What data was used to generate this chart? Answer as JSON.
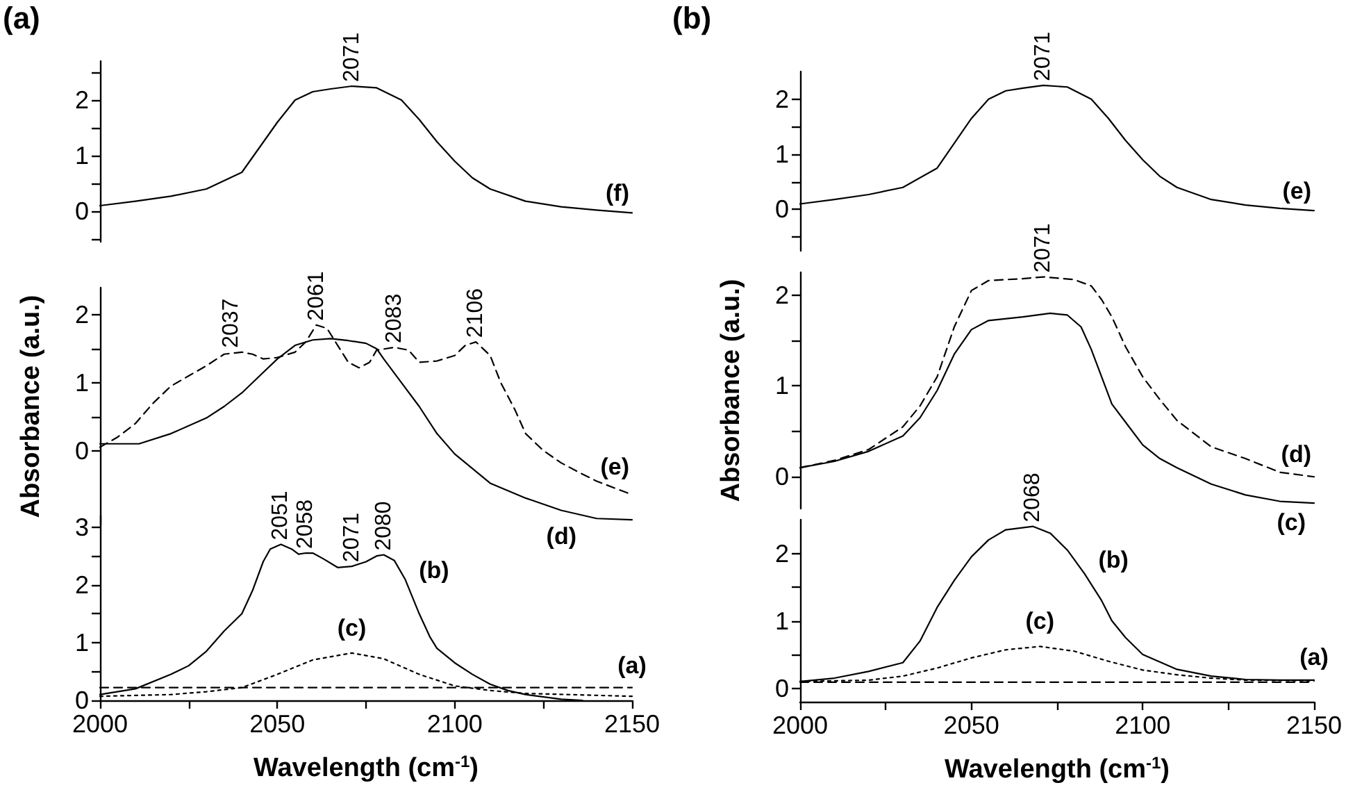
{
  "chart_data": [
    {
      "type": "line",
      "title": "(a)",
      "xlim": [
        2000,
        2150
      ],
      "tick_labels": "y",
      "ylim": [
        -0.55,
        2.7
      ],
      "yticks": [
        {
          "value": -0.5,
          "label": null
        },
        0,
        {
          "value": 0.5,
          "label": null
        },
        1,
        {
          "value": 1.5,
          "label": null
        },
        2,
        {
          "value": 2.5,
          "label": null
        }
      ],
      "annotations": [
        {
          "text": "2071",
          "x": 2071,
          "y": 2.25
        }
      ],
      "series": [
        {
          "name": "(f)",
          "color": "#000000",
          "line_style": "solid",
          "x": [
            2000,
            2010,
            2020,
            2030,
            2040,
            2045,
            2050,
            2055,
            2060,
            2065,
            2071,
            2078,
            2085,
            2090,
            2095,
            2100,
            2105,
            2110,
            2120,
            2130,
            2140,
            2150
          ],
          "values": [
            0.1,
            0.18,
            0.27,
            0.4,
            0.7,
            1.15,
            1.6,
            2.0,
            2.15,
            2.2,
            2.25,
            2.22,
            2.0,
            1.65,
            1.25,
            0.9,
            0.6,
            0.4,
            0.18,
            0.08,
            0.02,
            -0.03
          ]
        }
      ]
    },
    {
      "type": "line",
      "title": "(b)",
      "xlim": [
        2000,
        2150
      ],
      "tick_labels": "y",
      "ylim": [
        -0.75,
        2.5
      ],
      "yticks": [
        {
          "value": -0.5,
          "label": null
        },
        0,
        {
          "value": 0.5,
          "label": null
        },
        1,
        {
          "value": 1.5,
          "label": null
        },
        2
      ],
      "annotations": [
        {
          "text": "2071",
          "x": 2071,
          "y": 2.25
        }
      ],
      "series": [
        {
          "name": "(e)",
          "color": "#000000",
          "line_style": "solid",
          "x": [
            2000,
            2010,
            2020,
            2030,
            2040,
            2045,
            2050,
            2055,
            2060,
            2065,
            2071,
            2078,
            2085,
            2090,
            2095,
            2100,
            2105,
            2110,
            2120,
            2130,
            2140,
            2150
          ],
          "values": [
            0.1,
            0.18,
            0.27,
            0.4,
            0.75,
            1.2,
            1.65,
            2.0,
            2.15,
            2.2,
            2.25,
            2.22,
            2.0,
            1.65,
            1.25,
            0.9,
            0.6,
            0.4,
            0.18,
            0.08,
            0.02,
            -0.02
          ]
        }
      ]
    },
    {
      "type": "line",
      "ylabel": "Absorbance (a.u.)",
      "xlim": [
        2000,
        2150
      ],
      "tick_labels": "y",
      "ylim": [
        -1.1,
        2.4
      ],
      "yticks": [
        0,
        {
          "value": 0.5,
          "label": null
        },
        1,
        {
          "value": 1.5,
          "label": null
        },
        2
      ],
      "annotations": [
        {
          "text": "2037",
          "x": 2037,
          "y": 1.45
        },
        {
          "text": "2061",
          "x": 2061,
          "y": 1.85
        },
        {
          "text": "2083",
          "x": 2083,
          "y": 1.52
        },
        {
          "text": "2106",
          "x": 2106,
          "y": 1.6
        }
      ],
      "series": [
        {
          "name": "(d)",
          "color": "#000000",
          "line_style": "solid",
          "x": [
            2000,
            2011,
            2020,
            2030,
            2035,
            2040,
            2045,
            2050,
            2055,
            2060,
            2065,
            2070,
            2075,
            2078,
            2080,
            2085,
            2090,
            2095,
            2100,
            2110,
            2120,
            2130,
            2140,
            2150
          ],
          "values": [
            0.1,
            0.1,
            0.25,
            0.48,
            0.65,
            0.85,
            1.1,
            1.35,
            1.55,
            1.63,
            1.65,
            1.62,
            1.58,
            1.5,
            1.35,
            1.0,
            0.65,
            0.25,
            -0.05,
            -0.48,
            -0.7,
            -0.88,
            -1.0,
            -1.02
          ]
        },
        {
          "name": "(e)",
          "color": "#000000",
          "line_style": "dashed",
          "x": [
            2000,
            2005,
            2010,
            2015,
            2020,
            2025,
            2030,
            2035,
            2040,
            2043,
            2046,
            2050,
            2055,
            2058,
            2061,
            2064,
            2067,
            2070,
            2073,
            2076,
            2078,
            2083,
            2087,
            2090,
            2095,
            2100,
            2103,
            2106,
            2110,
            2113,
            2117,
            2120,
            2125,
            2130,
            2135,
            2140,
            2150
          ],
          "values": [
            0.05,
            0.2,
            0.4,
            0.7,
            0.95,
            1.1,
            1.25,
            1.42,
            1.45,
            1.42,
            1.35,
            1.37,
            1.45,
            1.6,
            1.85,
            1.8,
            1.55,
            1.3,
            1.22,
            1.3,
            1.48,
            1.52,
            1.48,
            1.3,
            1.32,
            1.4,
            1.55,
            1.6,
            1.4,
            1.0,
            0.6,
            0.25,
            0.0,
            -0.18,
            -0.32,
            -0.45,
            -0.65
          ]
        }
      ]
    },
    {
      "type": "line",
      "ylabel": "Absorbance (a.u.)",
      "xlim": [
        2000,
        2150
      ],
      "tick_labels": "y",
      "ylim": [
        -0.35,
        2.25
      ],
      "yticks": [
        0,
        {
          "value": 0.5,
          "label": null
        },
        1,
        {
          "value": 1.5,
          "label": null
        },
        2
      ],
      "annotations": [
        {
          "text": "2071",
          "x": 2071,
          "y": 2.2
        }
      ],
      "series": [
        {
          "name": "(d)",
          "color": "#000000",
          "line_style": "dashed",
          "x": [
            2000,
            2010,
            2020,
            2030,
            2035,
            2040,
            2045,
            2050,
            2055,
            2065,
            2071,
            2080,
            2085,
            2088,
            2091,
            2095,
            2100,
            2105,
            2110,
            2120,
            2130,
            2140,
            2150
          ],
          "values": [
            0.1,
            0.18,
            0.3,
            0.55,
            0.78,
            1.1,
            1.65,
            2.05,
            2.16,
            2.18,
            2.2,
            2.17,
            2.1,
            1.95,
            1.76,
            1.43,
            1.1,
            0.85,
            0.62,
            0.33,
            0.2,
            0.05,
            0.0
          ]
        },
        {
          "name": "(c)",
          "color": "#000000",
          "line_style": "solid",
          "x": [
            2000,
            2010,
            2020,
            2030,
            2035,
            2040,
            2045,
            2050,
            2055,
            2065,
            2073,
            2078,
            2082,
            2085,
            2088,
            2091,
            2095,
            2100,
            2105,
            2110,
            2120,
            2130,
            2140,
            2150
          ],
          "values": [
            0.1,
            0.17,
            0.28,
            0.45,
            0.65,
            0.95,
            1.35,
            1.62,
            1.72,
            1.76,
            1.8,
            1.78,
            1.65,
            1.4,
            1.1,
            0.8,
            0.6,
            0.35,
            0.2,
            0.1,
            -0.08,
            -0.2,
            -0.27,
            -0.29
          ]
        }
      ]
    },
    {
      "type": "line",
      "xlabel": "Wavelength (cm$^{-1}$)",
      "xlim": [
        2000,
        2150
      ],
      "xticks": [
        2000,
        {
          "value": 2025,
          "label": null
        },
        2050,
        {
          "value": 2075,
          "label": null
        },
        2100,
        {
          "value": 2125,
          "label": null
        },
        2150
      ],
      "ylim": [
        0,
        3.2
      ],
      "yticks": [
        0,
        {
          "value": 0.5,
          "label": null
        },
        1,
        {
          "value": 1.5,
          "label": null
        },
        2,
        {
          "value": 2.5,
          "label": null
        },
        3
      ],
      "annotations": [
        {
          "text": "2051",
          "x": 2051,
          "y": 2.7
        },
        {
          "text": "2058",
          "x": 2058,
          "y": 2.55
        },
        {
          "text": "2071",
          "x": 2071,
          "y": 2.32
        },
        {
          "text": "2080",
          "x": 2080,
          "y": 2.52
        }
      ],
      "series": [
        {
          "name": "(a)",
          "color": "#000000",
          "line_style": "dashed",
          "x": [
            2000,
            2050,
            2100,
            2150
          ],
          "values": [
            0.22,
            0.22,
            0.22,
            0.22
          ]
        },
        {
          "name": "(b)",
          "color": "#000000",
          "line_style": "solid",
          "x": [
            2000,
            2010,
            2020,
            2025,
            2030,
            2035,
            2040,
            2043,
            2046,
            2048,
            2051,
            2054,
            2056,
            2058,
            2060,
            2063,
            2067,
            2071,
            2075,
            2078,
            2080,
            2083,
            2086,
            2088,
            2090,
            2093,
            2095,
            2100,
            2105,
            2110,
            2115,
            2120,
            2130,
            2136
          ],
          "values": [
            0.1,
            0.2,
            0.45,
            0.6,
            0.85,
            1.2,
            1.5,
            1.9,
            2.4,
            2.62,
            2.7,
            2.62,
            2.53,
            2.55,
            2.55,
            2.45,
            2.3,
            2.32,
            2.4,
            2.5,
            2.52,
            2.42,
            2.1,
            1.8,
            1.5,
            1.1,
            0.9,
            0.65,
            0.45,
            0.28,
            0.17,
            0.1,
            0.02,
            0
          ]
        },
        {
          "name": "(c)",
          "color": "#000000",
          "line_style": "dotted",
          "x": [
            2000,
            2020,
            2030,
            2040,
            2050,
            2060,
            2071,
            2080,
            2090,
            2100,
            2110,
            2120,
            2150
          ],
          "values": [
            0.07,
            0.1,
            0.15,
            0.22,
            0.45,
            0.7,
            0.82,
            0.72,
            0.45,
            0.25,
            0.17,
            0.12,
            0.07
          ]
        }
      ]
    },
    {
      "type": "line",
      "xlabel": "Wavelength (cm$^{-1}$)",
      "xlim": [
        2000,
        2150
      ],
      "xticks": [
        2000,
        {
          "value": 2025,
          "label": null
        },
        2050,
        {
          "value": 2075,
          "label": null
        },
        2100,
        {
          "value": 2125,
          "label": null
        },
        2150
      ],
      "ylim": [
        -0.2,
        2.5
      ],
      "yticks": [
        0,
        {
          "value": 0.5,
          "label": null
        },
        1,
        {
          "value": 1.5,
          "label": null
        },
        2
      ],
      "annotations": [
        {
          "text": "2068",
          "x": 2068,
          "y": 2.4
        }
      ],
      "series": [
        {
          "name": "(a)",
          "color": "#000000",
          "line_style": "dashed",
          "x": [
            2000,
            2050,
            2100,
            2150
          ],
          "values": [
            0.09,
            0.09,
            0.09,
            0.09
          ]
        },
        {
          "name": "(b)",
          "color": "#000000",
          "line_style": "solid",
          "x": [
            2000,
            2010,
            2020,
            2030,
            2035,
            2040,
            2045,
            2050,
            2055,
            2060,
            2068,
            2073,
            2078,
            2083,
            2088,
            2091,
            2095,
            2100,
            2110,
            2120,
            2130,
            2140,
            2150
          ],
          "values": [
            0.1,
            0.15,
            0.25,
            0.38,
            0.7,
            1.2,
            1.6,
            1.95,
            2.2,
            2.35,
            2.4,
            2.3,
            2.05,
            1.7,
            1.3,
            1.0,
            0.75,
            0.5,
            0.28,
            0.18,
            0.13,
            0.12,
            0.12
          ]
        },
        {
          "name": "(c)",
          "color": "#000000",
          "line_style": "dotted",
          "x": [
            2000,
            2020,
            2030,
            2040,
            2050,
            2060,
            2070,
            2080,
            2090,
            2100,
            2110,
            2120,
            2130,
            2150
          ],
          "values": [
            0.1,
            0.12,
            0.18,
            0.3,
            0.45,
            0.57,
            0.62,
            0.55,
            0.4,
            0.27,
            0.2,
            0.15,
            0.12,
            0.11
          ]
        }
      ]
    }
  ]
}
